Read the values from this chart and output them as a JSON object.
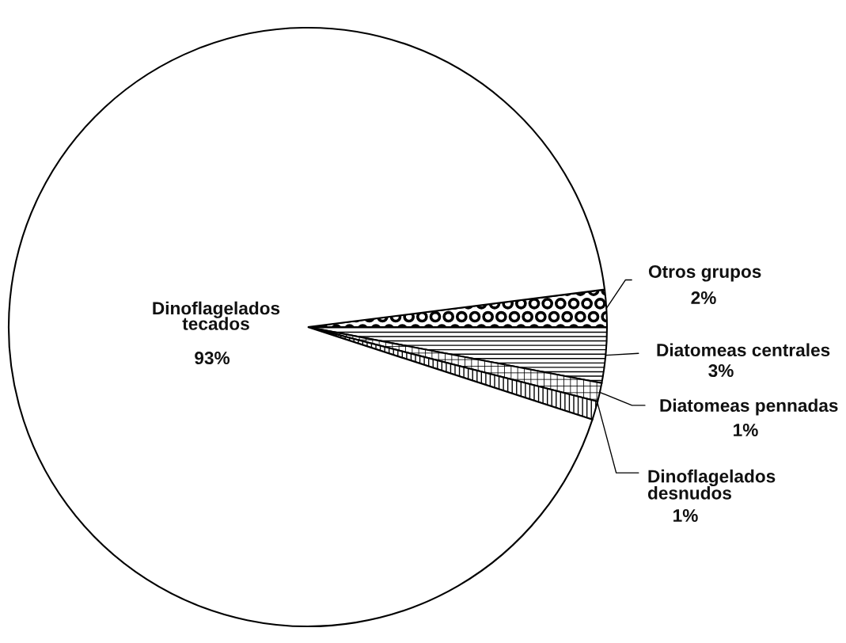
{
  "chart_data": {
    "type": "pie",
    "categories": [
      "Otros grupos",
      "Diatomeas centrales",
      "Diatomeas pennadas",
      "Dinoflagelados\ndesnudos",
      "Dinoflagelados\ntecados"
    ],
    "values": [
      2,
      3,
      1,
      1,
      93
    ],
    "value_labels": [
      "2%",
      "3%",
      "1%",
      "1%",
      "93%"
    ],
    "colors": [
      "#000000",
      "#000000",
      "#000000",
      "#000000",
      "#ffffff"
    ]
  }
}
